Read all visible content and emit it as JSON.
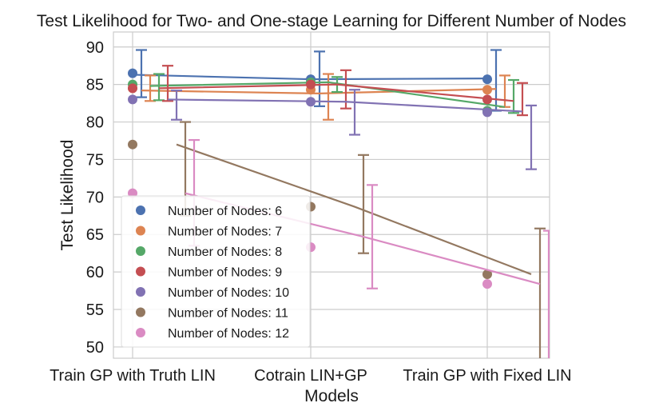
{
  "chart_data": {
    "type": "line",
    "title": "Test Likelihood for Two- and One-stage Learning for Different Number of Nodes",
    "xlabel": "Models",
    "ylabel": "Test Likelihood",
    "categories": [
      "Train GP with Truth LIN",
      "Cotrain LIN+GP",
      "Train GP with Fixed LIN"
    ],
    "ylim": [
      48.5,
      92
    ],
    "yticks": [
      50,
      55,
      60,
      65,
      70,
      75,
      80,
      85,
      90
    ],
    "grid": true,
    "legend_position": "lower-left",
    "series": [
      {
        "name": "Number of Nodes: 6",
        "color": "#4c72b0",
        "points": [
          86.5,
          85.7,
          85.7
        ],
        "line": [
          86.3,
          85.7,
          85.8
        ],
        "err_low": [
          83.3,
          82.1,
          81.5
        ],
        "err_high": [
          89.6,
          89.4,
          89.6
        ]
      },
      {
        "name": "Number of Nodes: 7",
        "color": "#dd8452",
        "points": [
          84.5,
          84.3,
          84.3
        ],
        "line": [
          84.2,
          83.8,
          84.4
        ],
        "err_low": [
          82.8,
          80.3,
          82.0
        ],
        "err_high": [
          86.2,
          86.4,
          86.2
        ]
      },
      {
        "name": "Number of Nodes: 8",
        "color": "#55a868",
        "points": [
          85.0,
          85.3,
          81.5
        ],
        "line": [
          84.8,
          85.3,
          82.0
        ],
        "err_low": [
          82.9,
          84.0,
          81.2
        ],
        "err_high": [
          86.4,
          86.0,
          85.6
        ]
      },
      {
        "name": "Number of Nodes: 9",
        "color": "#c44e52",
        "points": [
          84.5,
          85.0,
          83.0
        ],
        "line": [
          84.5,
          85.0,
          82.8
        ],
        "err_low": [
          82.8,
          81.8,
          80.9
        ],
        "err_high": [
          87.5,
          86.9,
          85.2
        ]
      },
      {
        "name": "Number of Nodes: 10",
        "color": "#8172b3",
        "points": [
          83.0,
          82.7,
          81.3
        ],
        "line": [
          83.0,
          82.7,
          81.4
        ],
        "err_low": [
          80.3,
          78.3,
          73.7
        ],
        "err_high": [
          84.2,
          84.3,
          82.2
        ]
      },
      {
        "name": "Number of Nodes: 11",
        "color": "#937860",
        "points": [
          77.0,
          68.7,
          59.7
        ],
        "line": [
          77.0,
          68.7,
          59.7
        ],
        "err_low": [
          67.5,
          62.5,
          48.5
        ],
        "err_high": [
          80.0,
          75.6,
          65.8
        ]
      },
      {
        "name": "Number of Nodes: 12",
        "color": "#da8bc3",
        "points": [
          70.5,
          63.3,
          58.4
        ],
        "line": [
          70.5,
          64.7,
          58.4
        ],
        "err_low": [
          63.5,
          57.8,
          48.5
        ],
        "err_high": [
          77.6,
          71.6,
          65.5
        ]
      }
    ]
  }
}
